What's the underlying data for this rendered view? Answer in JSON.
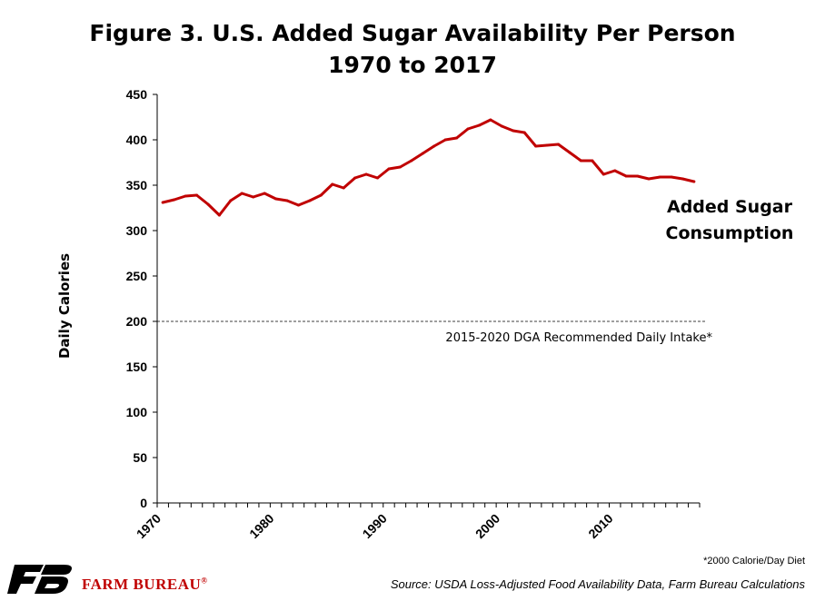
{
  "chart_data": {
    "type": "line",
    "title": "Figure 3. U.S. Added Sugar Availability Per Person",
    "subtitle": "1970 to 2017",
    "ylabel": "Daily Calories",
    "xlabel": "",
    "ylim": [
      0,
      450
    ],
    "yticks": [
      0,
      50,
      100,
      150,
      200,
      250,
      300,
      350,
      400,
      450
    ],
    "xticks": [
      1970,
      1980,
      1990,
      2000,
      2010
    ],
    "xlim": [
      1970,
      2017
    ],
    "grid": false,
    "series": [
      {
        "name": "Added Sugar Consumption",
        "color": "#c00000",
        "x": [
          1970,
          1971,
          1972,
          1973,
          1974,
          1975,
          1976,
          1977,
          1978,
          1979,
          1980,
          1981,
          1982,
          1983,
          1984,
          1985,
          1986,
          1987,
          1988,
          1989,
          1990,
          1991,
          1992,
          1993,
          1994,
          1995,
          1996,
          1997,
          1998,
          1999,
          2000,
          2001,
          2002,
          2003,
          2004,
          2005,
          2006,
          2007,
          2008,
          2009,
          2010,
          2011,
          2012,
          2013,
          2014,
          2015,
          2016,
          2017
        ],
        "values": [
          331,
          334,
          338,
          339,
          329,
          317,
          333,
          341,
          337,
          341,
          335,
          333,
          328,
          333,
          339,
          351,
          347,
          358,
          362,
          358,
          368,
          370,
          377,
          385,
          393,
          400,
          402,
          412,
          416,
          422,
          415,
          410,
          408,
          393,
          394,
          395,
          386,
          377,
          377,
          362,
          366,
          360,
          360,
          357,
          359,
          359,
          357,
          354
        ]
      }
    ],
    "reference_line": {
      "value": 200,
      "label": "2015-2020 DGA Recommended Daily Intake*",
      "style": "dashed"
    },
    "annotations": [
      "Added Sugar",
      "Consumption"
    ]
  },
  "footnote": "*2000 Calorie/Day Diet",
  "source": "Source: USDA Loss-Adjusted Food Availability Data, Farm Bureau Calculations",
  "logo": {
    "brand_name": "FARM BUREAU",
    "registered_mark": "®",
    "icon": "farm-bureau-fb-logo-icon",
    "brand_color": "#c00000"
  }
}
